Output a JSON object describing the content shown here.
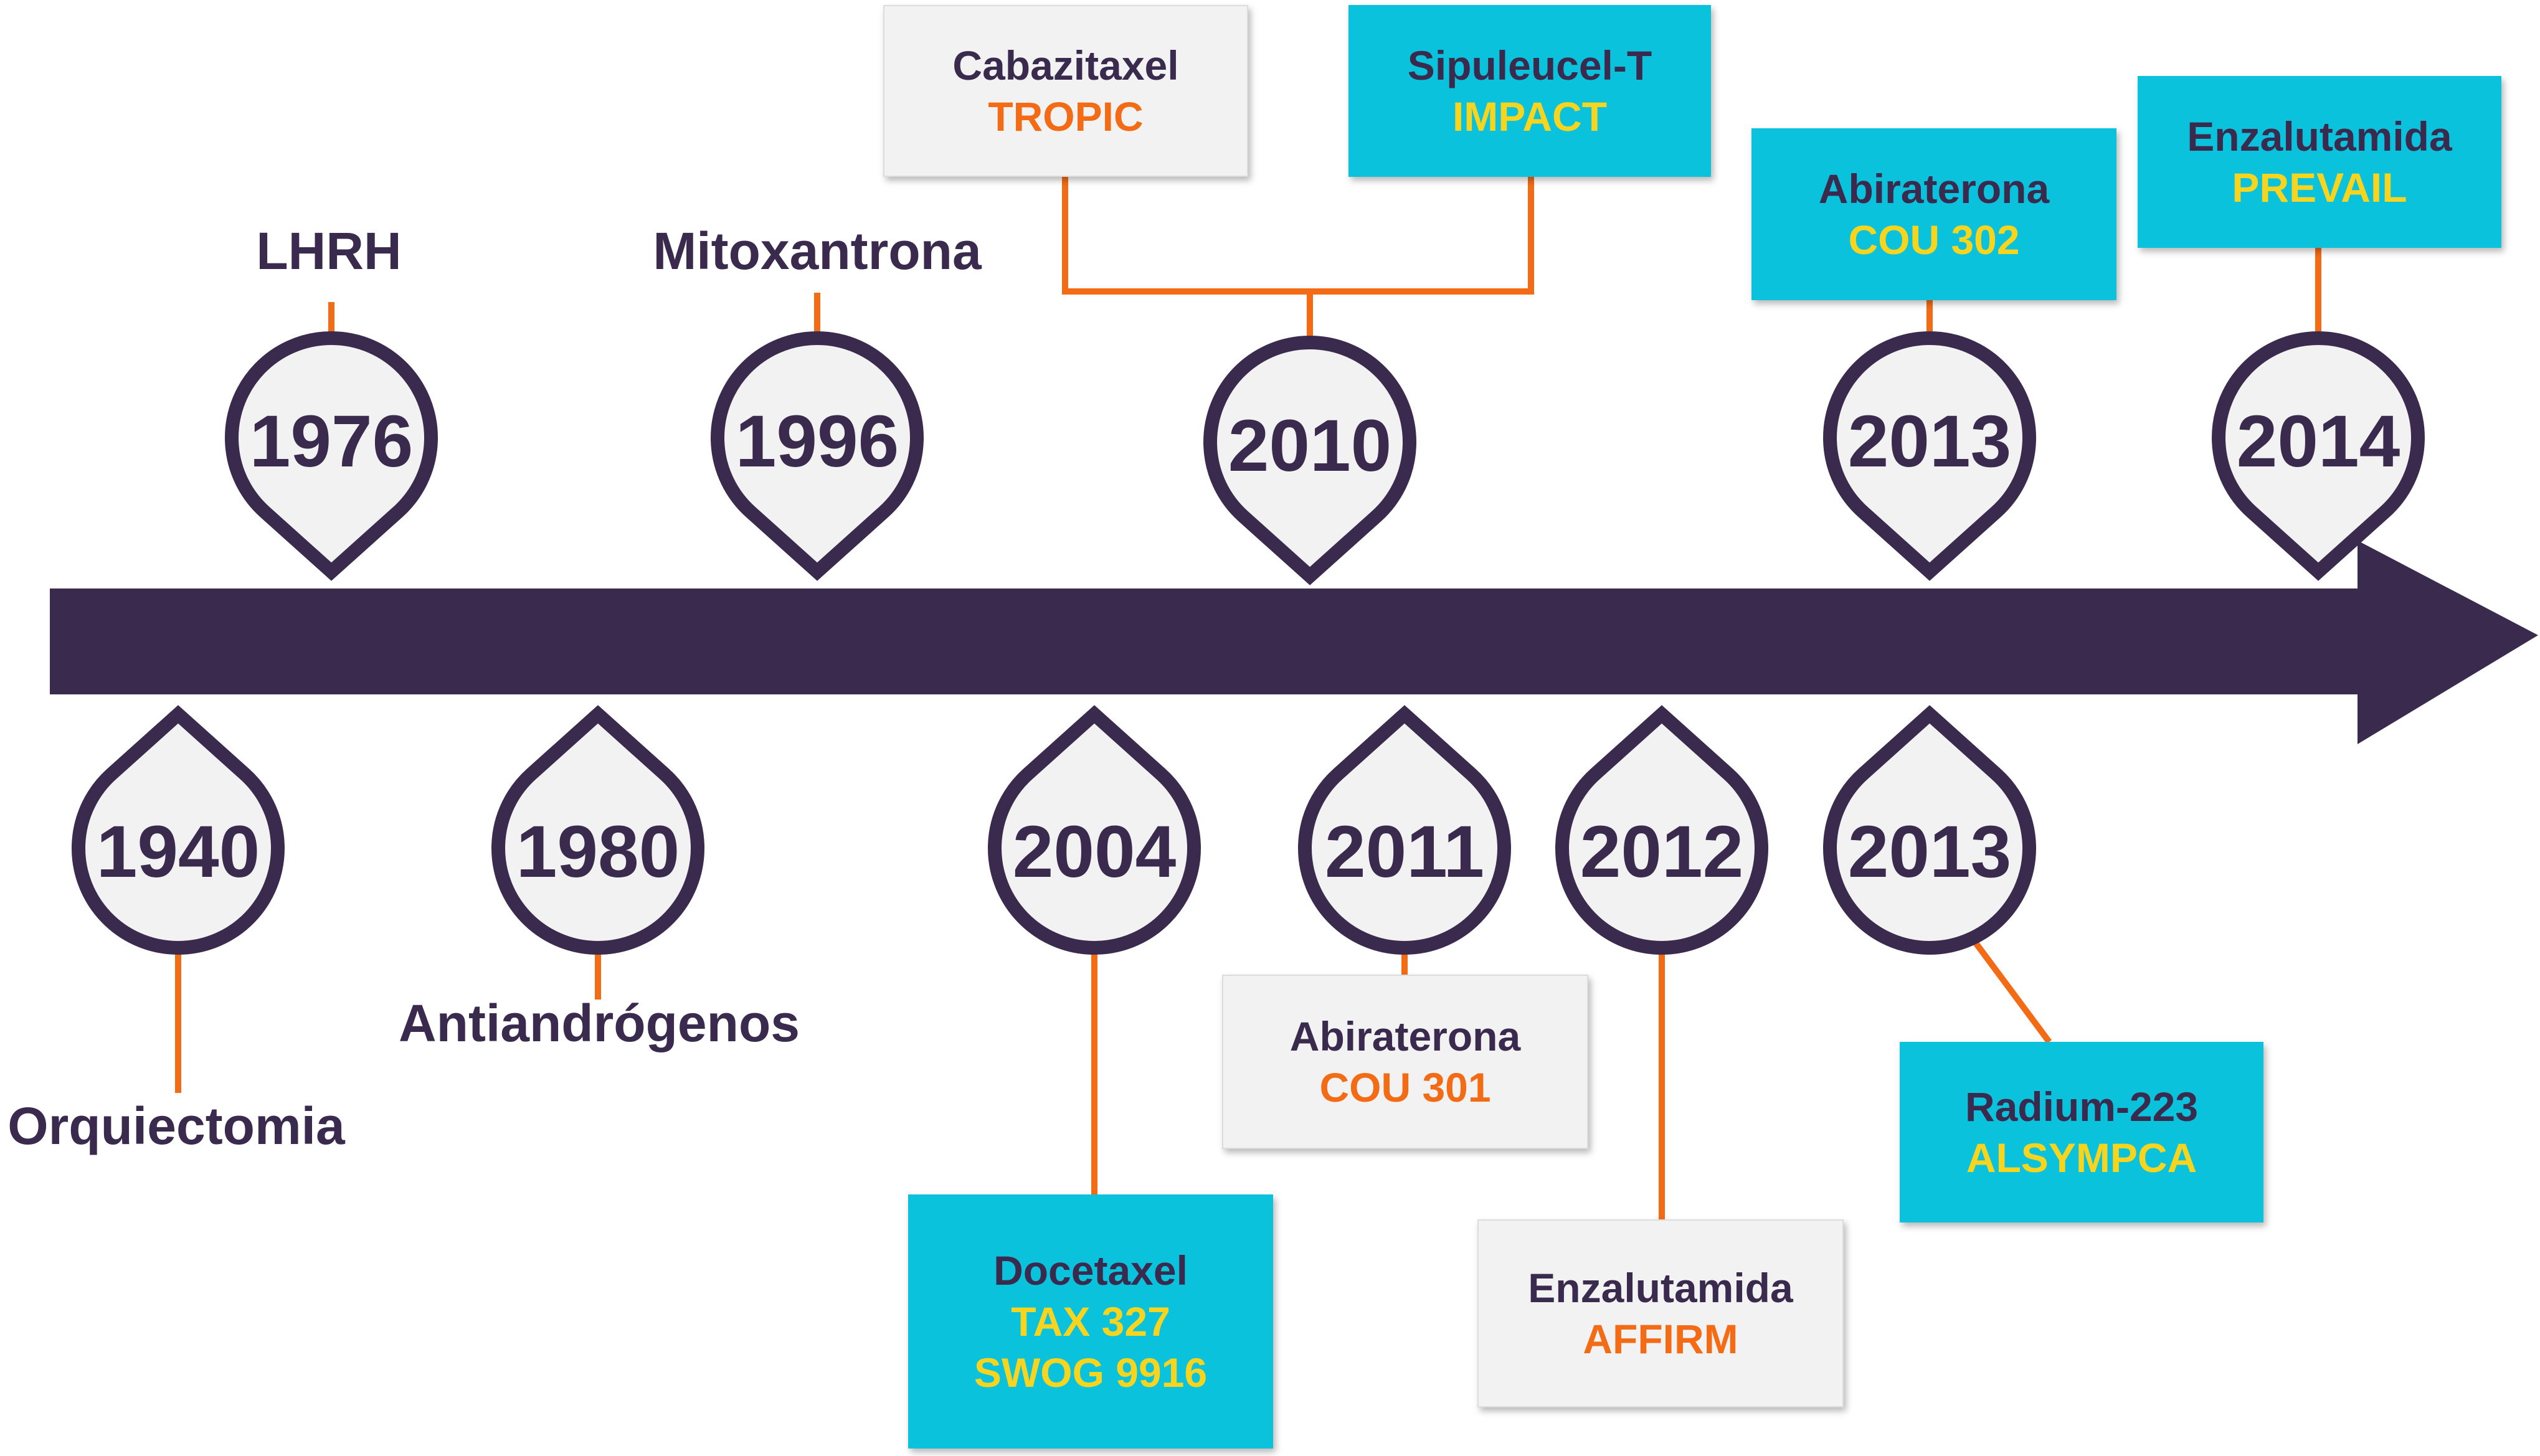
{
  "colors": {
    "arrow": "#3a2b4e",
    "pin_stroke": "#3a2b4e",
    "pin_fill": "#f2f2f2",
    "connector": "#f46b15",
    "card_gray": "#f2f2f2",
    "card_cyan": "#0bc2dc",
    "text_dark": "#3a2b4e",
    "text_orange": "#f46b15",
    "text_yellow": "#f7d51e"
  },
  "above": [
    {
      "year": "1976",
      "label": "LHRH"
    },
    {
      "year": "1996",
      "label": "Mitoxantrona"
    },
    {
      "year": "2010",
      "cards": [
        {
          "drug": "Cabazitaxel",
          "trial": "TROPIC",
          "style": "gray"
        },
        {
          "drug": "Sipuleucel-T",
          "trial": "IMPACT",
          "style": "cyan"
        }
      ]
    },
    {
      "year": "2013",
      "cards": [
        {
          "drug": "Abiraterona",
          "trial": "COU 302",
          "style": "cyan"
        }
      ]
    },
    {
      "year": "2014",
      "cards": [
        {
          "drug": "Enzalutamida",
          "trial": "PREVAIL",
          "style": "cyan"
        }
      ]
    }
  ],
  "below": [
    {
      "year": "1940",
      "label": "Orquiectomia"
    },
    {
      "year": "1980",
      "label": "Antiandrógenos"
    },
    {
      "year": "2004",
      "cards": [
        {
          "drug": "Docetaxel",
          "trial": "TAX 327\nSWOG 9916",
          "style": "cyan"
        }
      ]
    },
    {
      "year": "2011",
      "cards": [
        {
          "drug": "Abiraterona",
          "trial": "COU 301",
          "style": "gray"
        }
      ]
    },
    {
      "year": "2012",
      "cards": [
        {
          "drug": "Enzalutamida",
          "trial": "AFFIRM",
          "style": "gray"
        }
      ]
    },
    {
      "year": "2013",
      "cards": [
        {
          "drug": "Radium-223",
          "trial": "ALSYMPCA",
          "style": "cyan"
        }
      ]
    }
  ]
}
